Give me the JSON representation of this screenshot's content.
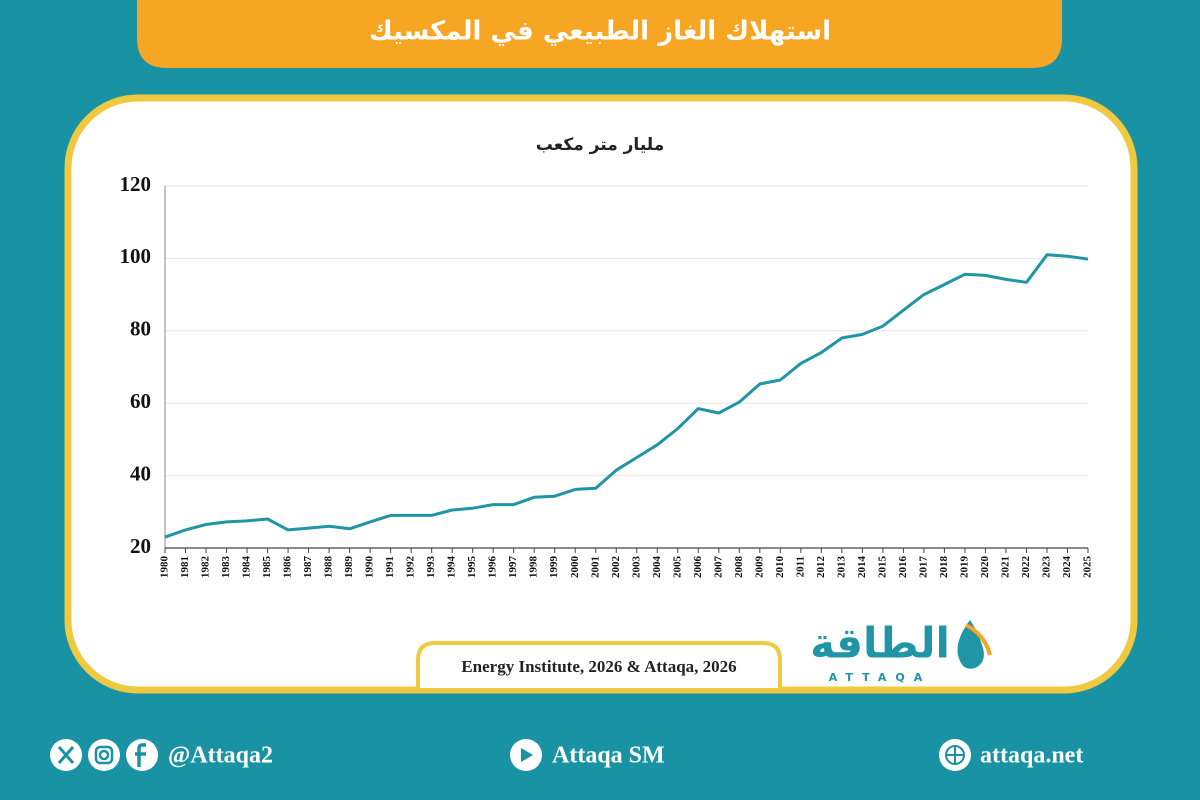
{
  "header": {
    "title": "استهلاك الغاز الطبيعي في المكسيك"
  },
  "chart_data": {
    "type": "line",
    "subtitle": "مليار متر مكعب",
    "categories": [
      "1980",
      "1981",
      "1982",
      "1983",
      "1984",
      "1985",
      "1986",
      "1987",
      "1988",
      "1989",
      "1990",
      "1991",
      "1992",
      "1993",
      "1994",
      "1995",
      "1996",
      "1997",
      "1998",
      "1999",
      "2000",
      "2001",
      "2002",
      "2003",
      "2004",
      "2005",
      "2006",
      "2007",
      "2008",
      "2009",
      "2010",
      "2011",
      "2012",
      "2013",
      "2014",
      "2015",
      "2016",
      "2017",
      "2018",
      "2019",
      "2020",
      "2021",
      "2022",
      "2023",
      "2024",
      "2025"
    ],
    "values": [
      23,
      25,
      26.5,
      27.2,
      27.5,
      28,
      25,
      25.5,
      26,
      25.3,
      27.2,
      29,
      29,
      29,
      30.5,
      31,
      32,
      32,
      34,
      34.3,
      36.2,
      36.5,
      41.5,
      45,
      48.5,
      53,
      58.5,
      57.3,
      60.3,
      65.3,
      66.4,
      71,
      74,
      78,
      79,
      81.3,
      85.7,
      90,
      92.8,
      95.6,
      95.3,
      94.2,
      93.4,
      101,
      100.6,
      99.8
    ],
    "color": "#1f95a5",
    "ylim": [
      20,
      120
    ],
    "yticks": [
      20,
      40,
      60,
      80,
      100,
      120
    ],
    "grid": true
  },
  "source": "Energy Institute, 2026 & Attaqa, 2026",
  "logo": {
    "arabic": "الطاقة",
    "latin": "ATTAQA"
  },
  "footer": {
    "social": "@Attaqa2",
    "youtube": "Attaqa SM",
    "website": "attaqa.net"
  }
}
